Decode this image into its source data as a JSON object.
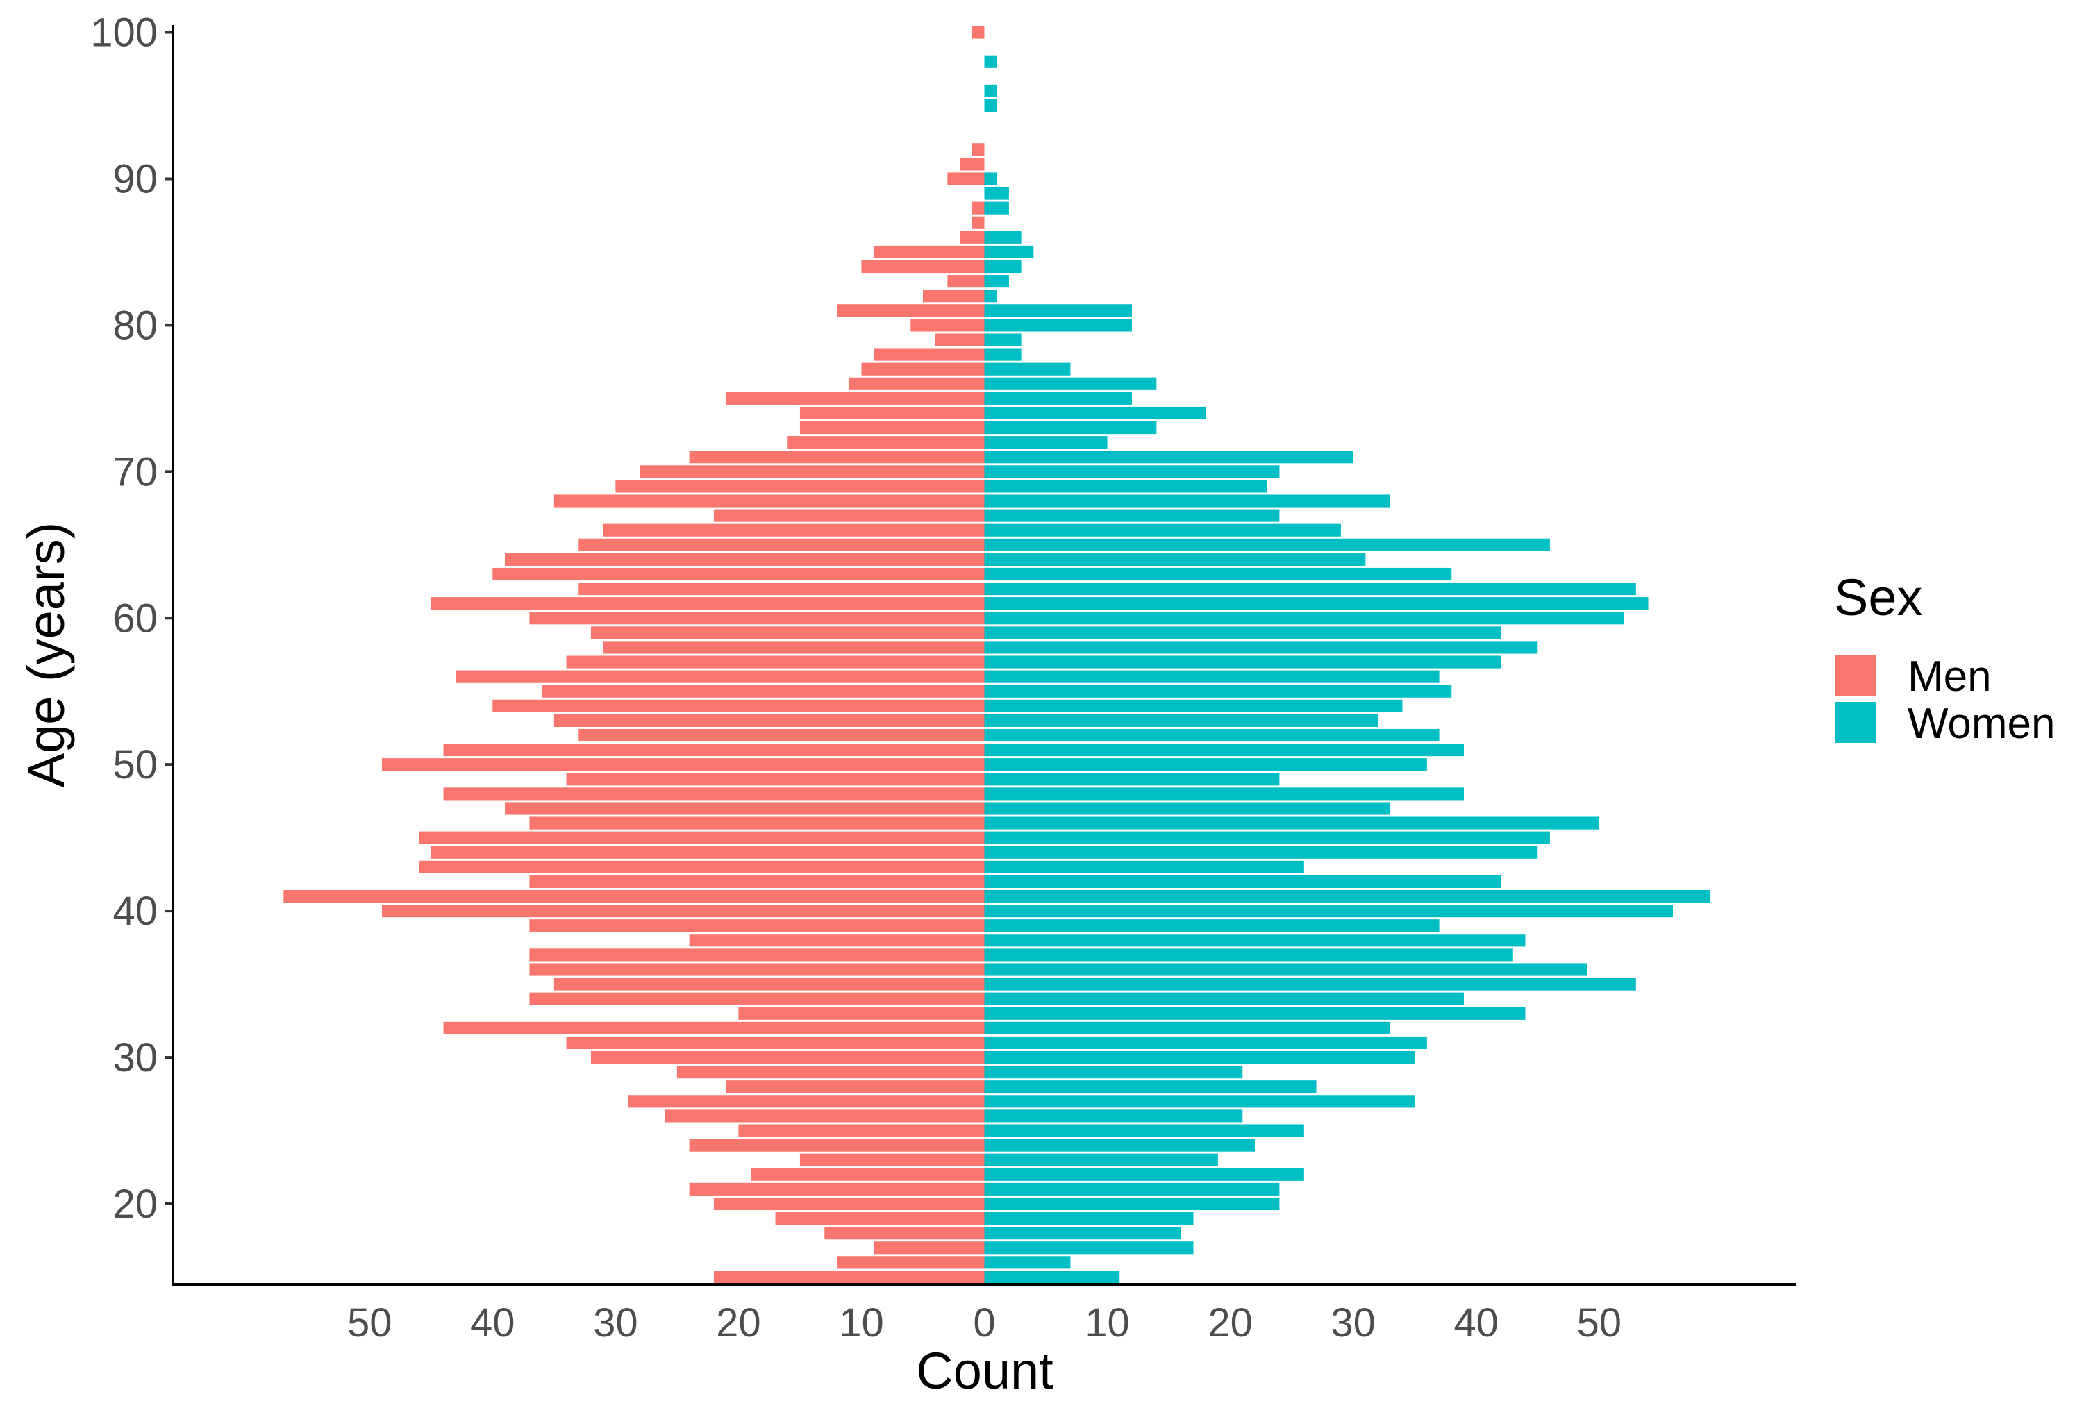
{
  "chart_data": {
    "type": "bar",
    "orientation": "horizontal-mirrored",
    "xlabel": "Count",
    "ylabel": "Age (years)",
    "x_ticks": [
      50,
      40,
      30,
      20,
      10,
      0,
      10,
      20,
      30,
      40,
      50
    ],
    "y_ticks": [
      20,
      30,
      40,
      50,
      60,
      70,
      80,
      90,
      100
    ],
    "xlim": [
      -66,
      66
    ],
    "ylim": [
      14.5,
      100.5
    ],
    "grid": false,
    "legend": {
      "title": "Sex",
      "position": "right",
      "entries": [
        {
          "label": "Men",
          "color": "#F8766D"
        },
        {
          "label": "Women",
          "color": "#00BFC4"
        }
      ]
    },
    "ages": [
      15,
      16,
      17,
      18,
      19,
      20,
      21,
      22,
      23,
      24,
      25,
      26,
      27,
      28,
      29,
      30,
      31,
      32,
      33,
      34,
      35,
      36,
      37,
      38,
      39,
      40,
      41,
      42,
      43,
      44,
      45,
      46,
      47,
      48,
      49,
      50,
      51,
      52,
      53,
      54,
      55,
      56,
      57,
      58,
      59,
      60,
      61,
      62,
      63,
      64,
      65,
      66,
      67,
      68,
      69,
      70,
      71,
      72,
      73,
      74,
      75,
      76,
      77,
      78,
      79,
      80,
      81,
      82,
      83,
      84,
      85,
      86,
      87,
      88,
      89,
      90,
      91,
      92,
      93,
      94,
      95,
      96,
      97,
      98,
      99,
      100
    ],
    "series": [
      {
        "name": "Men",
        "color": "#F8766D",
        "values": [
          22,
          12,
          9,
          13,
          17,
          22,
          24,
          19,
          15,
          24,
          20,
          26,
          29,
          21,
          25,
          32,
          34,
          44,
          20,
          37,
          35,
          37,
          37,
          24,
          37,
          49,
          57,
          37,
          46,
          45,
          46,
          37,
          39,
          44,
          34,
          49,
          44,
          33,
          35,
          40,
          36,
          43,
          34,
          31,
          32,
          37,
          45,
          33,
          40,
          39,
          33,
          31,
          22,
          35,
          30,
          28,
          24,
          16,
          15,
          15,
          21,
          11,
          10,
          9,
          4,
          6,
          12,
          5,
          3,
          10,
          9,
          2,
          1,
          1,
          0,
          3,
          2,
          1,
          0,
          0,
          0,
          0,
          0,
          0,
          0,
          1
        ]
      },
      {
        "name": "Women",
        "color": "#00BFC4",
        "values": [
          11,
          7,
          17,
          16,
          17,
          24,
          24,
          26,
          19,
          22,
          26,
          21,
          35,
          27,
          21,
          35,
          36,
          33,
          44,
          39,
          53,
          49,
          43,
          44,
          37,
          56,
          59,
          42,
          26,
          45,
          46,
          50,
          33,
          39,
          24,
          36,
          39,
          37,
          32,
          34,
          38,
          37,
          42,
          45,
          42,
          52,
          54,
          53,
          38,
          31,
          46,
          29,
          24,
          33,
          23,
          24,
          30,
          10,
          14,
          18,
          12,
          14,
          7,
          3,
          3,
          12,
          12,
          1,
          2,
          3,
          4,
          3,
          0,
          2,
          2,
          1,
          0,
          0,
          0,
          0,
          1,
          1,
          0,
          1,
          0,
          0
        ]
      }
    ]
  }
}
